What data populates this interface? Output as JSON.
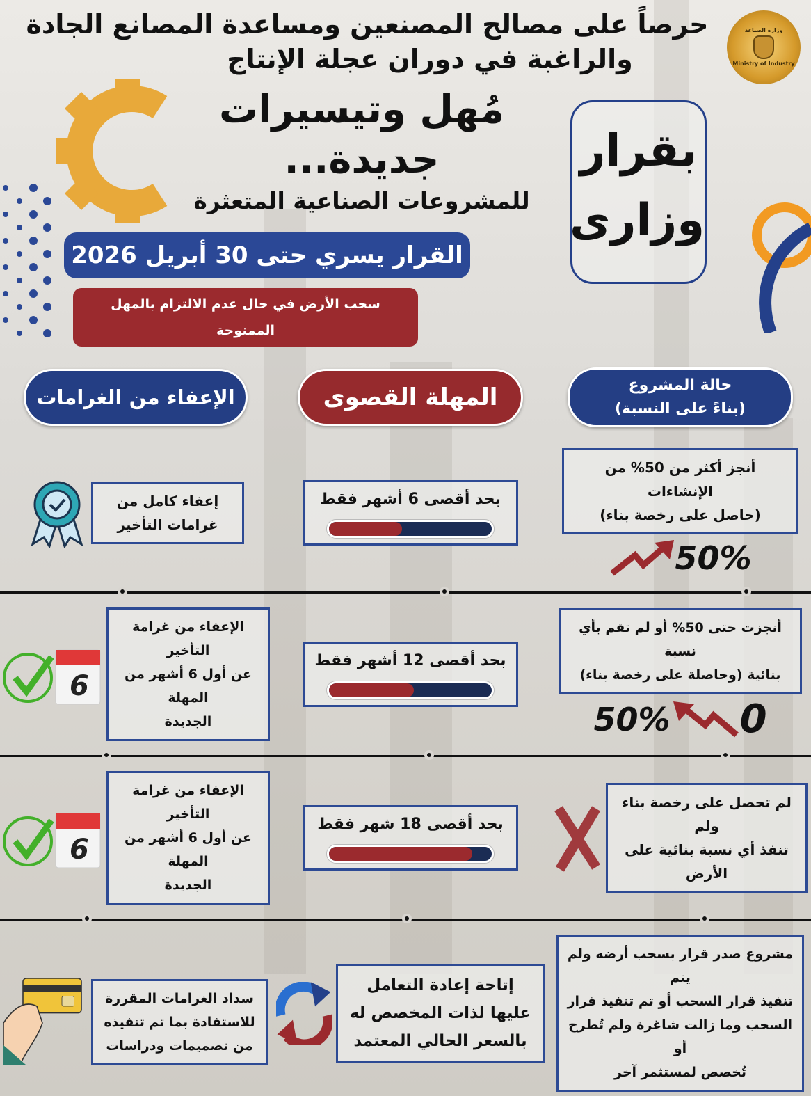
{
  "header": {
    "line1": "حرصاً على مصالح المصنعين ومساعدة المصانع الجادة",
    "line2": "والراغبة في دوران عجلة الإنتاج",
    "headline": "مُهل وتيسيرات جديدة...",
    "subheadline": "للمشروعات الصناعية المتعثرة",
    "decree_line1": "بقرار",
    "decree_line2": "وزارى",
    "date_banner": "القرار يسري حتى 30 أبريل 2026",
    "warning_banner": "سحب الأرض في حال عدم الالتزام بالمهل الممنوحة",
    "logo_text": "Ministry of Industry",
    "logo_arabic": "وزارة الصناعة"
  },
  "columns": {
    "status": {
      "line1": "حالة المشروع",
      "line2": "(بناءً على النسبة)"
    },
    "deadline": "المهلة القصوى",
    "exemption": "الإعفاء من الغرامات"
  },
  "rows": [
    {
      "status": [
        "أنجز أكثر من 50% من الإنشاءات",
        "(حاصل على رخصة بناء)"
      ],
      "status_graphic": "50%",
      "deadline": "بحد أقصى 6 أشهر فقط",
      "deadline_progress": 0.45,
      "exemption": [
        "إعفاء كامل من",
        "غرامات التأخير"
      ],
      "exemption_icon": "award-badge-icon"
    },
    {
      "status": [
        "أنجزت حتى 50% أو لم تقم بأي نسبة",
        "بنائية (وحاصلة على رخصة بناء)"
      ],
      "status_graphic_from": "0",
      "status_graphic_to": "50%",
      "deadline": "بحد أقصى 12 أشهر فقط",
      "deadline_progress": 0.52,
      "exemption": [
        "الإعفاء من غرامة التأخير",
        "عن أول 6 أشهر من المهلة",
        "الجديدة"
      ],
      "calendar_number": "6"
    },
    {
      "status": [
        "لم تحصل على رخصة بناء ولم",
        "تنفذ أي نسبة بنائية على الأرض"
      ],
      "deadline": "بحد أقصى 18 شهر فقط",
      "deadline_progress": 0.88,
      "exemption": [
        "الإعفاء من غرامة التأخير",
        "عن أول 6 أشهر من المهلة",
        "الجديدة"
      ],
      "calendar_number": "6"
    },
    {
      "status": [
        "مشروع صدر قرار بسحب أرضه ولم يتم",
        "تنفيذ قرار السحب أو تم تنفيذ قرار",
        "السحب وما زالت شاغرة ولم تُطرح أو",
        "تُخصص لمستثمر آخر"
      ],
      "deadline": [
        "إتاحة إعادة التعامل",
        "عليها لذات المخصص له",
        "بالسعر الحالي المعتمد"
      ],
      "exemption": [
        "سداد الغرامات المقررة",
        "للاستفادة بما تم تنفيذه",
        "من تصميمات ودراسات"
      ]
    }
  ],
  "colors": {
    "navy": "#243e84",
    "red": "#962a2d",
    "gold": "#e8a93a",
    "bar_track": "#1b2c54"
  }
}
